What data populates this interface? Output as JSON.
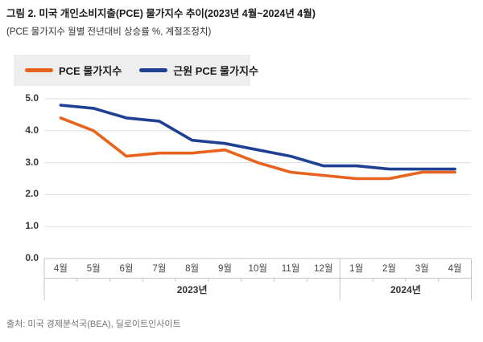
{
  "figure": {
    "title_prefix": "그림 2.",
    "title_rest": " 미국 개인소비지출(PCE) 물가지수 추이(2023년 4월~2024년 4월)",
    "subtitle": "(PCE 물가지수 월별 전년대비 상승률 %, 계절조정치)",
    "source": "출처: 미국 경제분석국(BEA), 딜로이트인사이트"
  },
  "legend": [
    {
      "label": "PCE 물가지수",
      "color": "#e8641e"
    },
    {
      "label": "근원 PCE 물가지수",
      "color": "#1f4193"
    }
  ],
  "chart_data": {
    "type": "line",
    "title": "미국 개인소비지출(PCE) 물가지수 추이(2023년 4월~2024년 4월)",
    "subtitle": "(PCE 물가지수 월별 전년대비 상승률 %, 계절조정치)",
    "categories": [
      "4월",
      "5월",
      "6월",
      "7월",
      "8월",
      "9월",
      "10월",
      "11월",
      "12월",
      "1월",
      "2월",
      "3월",
      "4월"
    ],
    "year_groups": [
      {
        "label": "2023년",
        "span": 9
      },
      {
        "label": "2024년",
        "span": 4
      }
    ],
    "series": [
      {
        "name": "PCE 물가지수",
        "color": "#e8641e",
        "values": [
          4.4,
          4.0,
          3.2,
          3.3,
          3.3,
          3.4,
          3.0,
          2.7,
          2.6,
          2.5,
          2.5,
          2.7,
          2.7
        ]
      },
      {
        "name": "근원 PCE 물가지수",
        "color": "#1f4193",
        "values": [
          4.8,
          4.7,
          4.4,
          4.3,
          3.7,
          3.6,
          3.4,
          3.2,
          2.9,
          2.9,
          2.8,
          2.8,
          2.8
        ]
      }
    ],
    "xlabel": "",
    "ylabel": "",
    "ylim": [
      0,
      5
    ],
    "yticks": [
      "5.0",
      "4.0",
      "3.0",
      "2.0",
      "1.0",
      "0.0"
    ],
    "grid": "horizontal",
    "legend_position": "top-left"
  },
  "colors": {
    "grid_line": "#dedede",
    "axis_line": "#c6c6c6",
    "legend_background": "#eeeeee"
  }
}
